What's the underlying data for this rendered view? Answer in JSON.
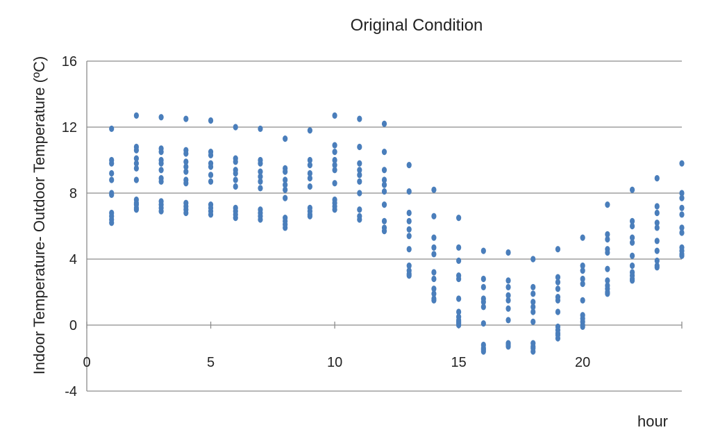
{
  "chart_data": {
    "type": "scatter",
    "title": "Original Condition",
    "xlabel": "hour",
    "ylabel": "Indoor Temperature-  Outdoor Temperature   (ºC)",
    "xlim": [
      0,
      24
    ],
    "ylim": [
      -4,
      16
    ],
    "xticks": [
      0,
      5,
      10,
      15,
      20
    ],
    "yticks": [
      -4,
      0,
      4,
      8,
      12,
      16
    ],
    "grid": true,
    "marker_color": "#4a7ebb",
    "series": [
      {
        "x": [
          1,
          1,
          1,
          1,
          1,
          1,
          1,
          1,
          1,
          1,
          1,
          2,
          2,
          2,
          2,
          2,
          2,
          2,
          2,
          2,
          2,
          2,
          2,
          3,
          3,
          3,
          3,
          3,
          3,
          3,
          3,
          3,
          3,
          3,
          3,
          4,
          4,
          4,
          4,
          4,
          4,
          4,
          4,
          4,
          4,
          4,
          4,
          5,
          5,
          5,
          5,
          5,
          5,
          5,
          5,
          5,
          5,
          5,
          6,
          6,
          6,
          6,
          6,
          6,
          6,
          6,
          6,
          6,
          6,
          7,
          7,
          7,
          7,
          7,
          7,
          7,
          7,
          7,
          7,
          7,
          8,
          8,
          8,
          8,
          8,
          8,
          8,
          8,
          8,
          8,
          8,
          9,
          9,
          9,
          9,
          9,
          9,
          9,
          9,
          9,
          9,
          10,
          10,
          10,
          10,
          10,
          10,
          10,
          10,
          10,
          10,
          10,
          11,
          11,
          11,
          11,
          11,
          11,
          11,
          11,
          11,
          11,
          12,
          12,
          12,
          12,
          12,
          12,
          12,
          12,
          12,
          12,
          13,
          13,
          13,
          13,
          13,
          13,
          13,
          13,
          13,
          13,
          13,
          14,
          14,
          14,
          14,
          14,
          14,
          14,
          14,
          14,
          14,
          14,
          15,
          15,
          15,
          15,
          15,
          15,
          15,
          15,
          15,
          15,
          15,
          15,
          16,
          16,
          16,
          16,
          16,
          16,
          16,
          16,
          16,
          16,
          16,
          17,
          17,
          17,
          17,
          17,
          17,
          17,
          17,
          17,
          17,
          18,
          18,
          18,
          18,
          18,
          18,
          18,
          18,
          18,
          18,
          18,
          19,
          19,
          19,
          19,
          19,
          19,
          19,
          19,
          19,
          19,
          19,
          19,
          20,
          20,
          20,
          20,
          20,
          20,
          20,
          20,
          20,
          20,
          20,
          21,
          21,
          21,
          21,
          21,
          21,
          21,
          21,
          21,
          21,
          21,
          22,
          22,
          22,
          22,
          22,
          22,
          22,
          22,
          22,
          22,
          22,
          23,
          23,
          23,
          23,
          23,
          23,
          23,
          23,
          23,
          23,
          24,
          24,
          24,
          24,
          24,
          24,
          24,
          24,
          24,
          24,
          24
        ],
        "y": [
          11.9,
          10.0,
          9.8,
          9.2,
          8.8,
          8.0,
          7.9,
          6.8,
          6.6,
          6.4,
          6.2,
          12.7,
          10.8,
          10.6,
          10.1,
          9.8,
          9.5,
          8.8,
          7.6,
          7.4,
          7.3,
          7.1,
          7.0,
          12.6,
          10.7,
          10.5,
          10.0,
          9.8,
          9.4,
          8.9,
          8.7,
          7.5,
          7.3,
          7.1,
          6.9,
          12.5,
          10.6,
          10.4,
          9.9,
          9.6,
          9.3,
          8.8,
          8.6,
          7.4,
          7.2,
          7.0,
          6.8,
          12.4,
          10.5,
          10.3,
          9.8,
          9.6,
          9.1,
          8.7,
          7.3,
          7.1,
          6.9,
          6.7,
          12.0,
          10.1,
          9.9,
          9.4,
          9.2,
          8.8,
          8.4,
          7.1,
          6.9,
          6.7,
          6.5,
          11.9,
          10.0,
          9.8,
          9.3,
          9.0,
          8.7,
          8.3,
          7.0,
          6.8,
          6.6,
          6.4,
          11.3,
          9.5,
          9.3,
          8.8,
          8.5,
          8.2,
          7.7,
          6.5,
          6.3,
          6.1,
          5.9,
          11.8,
          10.0,
          9.7,
          9.2,
          8.9,
          8.4,
          7.1,
          6.9,
          6.7,
          6.6,
          12.7,
          10.9,
          10.5,
          10.0,
          9.7,
          9.4,
          8.6,
          7.6,
          7.4,
          7.2,
          7.0,
          12.5,
          10.8,
          9.8,
          9.4,
          9.1,
          8.7,
          8.0,
          7.0,
          6.6,
          6.4,
          12.2,
          10.5,
          9.4,
          8.8,
          8.5,
          8.1,
          7.3,
          6.3,
          5.9,
          5.7,
          9.7,
          8.1,
          6.8,
          6.3,
          5.8,
          5.4,
          4.6,
          3.6,
          3.3,
          3.1,
          3.0,
          8.2,
          6.6,
          5.3,
          4.7,
          4.3,
          3.2,
          2.8,
          2.2,
          1.9,
          1.6,
          1.5,
          6.5,
          4.7,
          3.9,
          3.0,
          2.8,
          1.6,
          0.8,
          0.5,
          0.3,
          0.2,
          0.1,
          0.0,
          4.5,
          2.8,
          2.3,
          1.6,
          1.4,
          1.1,
          0.1,
          -1.2,
          -1.4,
          -1.5,
          -1.6,
          4.4,
          2.7,
          2.3,
          1.8,
          1.5,
          1.0,
          0.3,
          -1.1,
          -1.2,
          -1.3,
          4.0,
          2.3,
          1.9,
          1.4,
          1.1,
          0.8,
          0.2,
          -1.1,
          -1.3,
          -1.4,
          -1.6,
          4.6,
          2.9,
          2.6,
          2.2,
          1.7,
          1.5,
          0.8,
          -0.1,
          -0.3,
          -0.5,
          -0.6,
          -0.8,
          5.3,
          3.6,
          3.3,
          2.8,
          2.5,
          1.5,
          0.6,
          0.4,
          0.2,
          0.0,
          -0.1,
          7.3,
          5.5,
          5.2,
          4.6,
          4.4,
          3.4,
          2.7,
          2.4,
          2.2,
          2.0,
          1.9,
          8.2,
          6.3,
          6.0,
          5.3,
          5.0,
          4.2,
          3.6,
          3.2,
          3.0,
          2.8,
          2.7,
          8.9,
          7.2,
          6.8,
          6.2,
          5.9,
          5.1,
          4.5,
          3.9,
          3.6,
          3.5,
          9.8,
          8.0,
          7.7,
          7.1,
          6.7,
          5.9,
          5.6,
          4.7,
          4.5,
          4.3,
          4.2
        ]
      }
    ]
  }
}
